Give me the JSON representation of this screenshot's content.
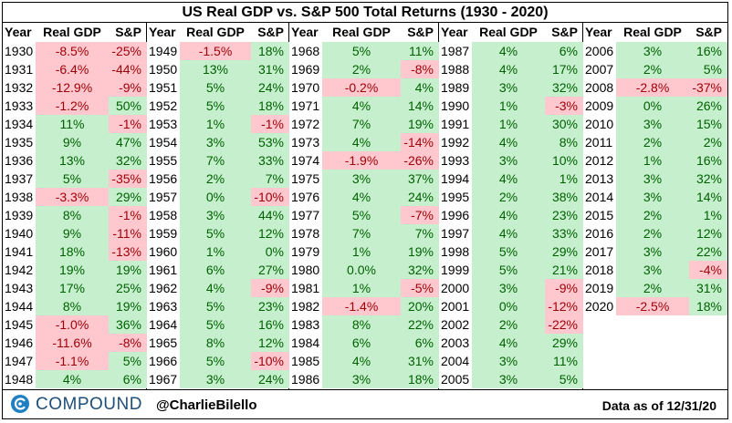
{
  "title": "US Real GDP vs. S&P 500 Total Returns (1930 - 2020)",
  "headers": {
    "year": "Year",
    "gdp": "Real GDP",
    "sp": "S&P"
  },
  "colors": {
    "positive_bg": "#c6efce",
    "positive_text": "#006100",
    "negative_bg": "#ffc7ce",
    "negative_text": "#9c0006"
  },
  "columns": [
    {
      "rows": [
        {
          "year": "1930",
          "gdp": "-8.5%",
          "sp": "-25%"
        },
        {
          "year": "1931",
          "gdp": "-6.4%",
          "sp": "-44%"
        },
        {
          "year": "1932",
          "gdp": "-12.9%",
          "sp": "-9%"
        },
        {
          "year": "1933",
          "gdp": "-1.2%",
          "sp": "50%"
        },
        {
          "year": "1934",
          "gdp": "11%",
          "sp": "-1%"
        },
        {
          "year": "1935",
          "gdp": "9%",
          "sp": "47%"
        },
        {
          "year": "1936",
          "gdp": "13%",
          "sp": "32%"
        },
        {
          "year": "1937",
          "gdp": "5%",
          "sp": "-35%"
        },
        {
          "year": "1938",
          "gdp": "-3.3%",
          "sp": "29%"
        },
        {
          "year": "1939",
          "gdp": "8%",
          "sp": "-1%"
        },
        {
          "year": "1940",
          "gdp": "9%",
          "sp": "-11%"
        },
        {
          "year": "1941",
          "gdp": "18%",
          "sp": "-13%"
        },
        {
          "year": "1942",
          "gdp": "19%",
          "sp": "19%"
        },
        {
          "year": "1943",
          "gdp": "17%",
          "sp": "25%"
        },
        {
          "year": "1944",
          "gdp": "8%",
          "sp": "19%"
        },
        {
          "year": "1945",
          "gdp": "-1.0%",
          "sp": "36%"
        },
        {
          "year": "1946",
          "gdp": "-11.6%",
          "sp": "-8%"
        },
        {
          "year": "1947",
          "gdp": "-1.1%",
          "sp": "5%"
        },
        {
          "year": "1948",
          "gdp": "4%",
          "sp": "6%"
        }
      ]
    },
    {
      "rows": [
        {
          "year": "1949",
          "gdp": "-1.5%",
          "sp": "18%"
        },
        {
          "year": "1950",
          "gdp": "13%",
          "sp": "31%"
        },
        {
          "year": "1951",
          "gdp": "5%",
          "sp": "24%"
        },
        {
          "year": "1952",
          "gdp": "5%",
          "sp": "18%"
        },
        {
          "year": "1953",
          "gdp": "1%",
          "sp": "-1%"
        },
        {
          "year": "1954",
          "gdp": "3%",
          "sp": "53%"
        },
        {
          "year": "1955",
          "gdp": "7%",
          "sp": "33%"
        },
        {
          "year": "1956",
          "gdp": "2%",
          "sp": "7%"
        },
        {
          "year": "1957",
          "gdp": "0%",
          "sp": "-10%"
        },
        {
          "year": "1958",
          "gdp": "3%",
          "sp": "44%"
        },
        {
          "year": "1959",
          "gdp": "5%",
          "sp": "12%"
        },
        {
          "year": "1960",
          "gdp": "1%",
          "sp": "0%"
        },
        {
          "year": "1961",
          "gdp": "6%",
          "sp": "27%"
        },
        {
          "year": "1962",
          "gdp": "4%",
          "sp": "-9%"
        },
        {
          "year": "1963",
          "gdp": "5%",
          "sp": "23%"
        },
        {
          "year": "1964",
          "gdp": "5%",
          "sp": "16%"
        },
        {
          "year": "1965",
          "gdp": "8%",
          "sp": "12%"
        },
        {
          "year": "1966",
          "gdp": "5%",
          "sp": "-10%"
        },
        {
          "year": "1967",
          "gdp": "3%",
          "sp": "24%"
        }
      ]
    },
    {
      "rows": [
        {
          "year": "1968",
          "gdp": "5%",
          "sp": "11%"
        },
        {
          "year": "1969",
          "gdp": "2%",
          "sp": "-8%"
        },
        {
          "year": "1970",
          "gdp": "-0.2%",
          "sp": "4%"
        },
        {
          "year": "1971",
          "gdp": "4%",
          "sp": "14%"
        },
        {
          "year": "1972",
          "gdp": "7%",
          "sp": "19%"
        },
        {
          "year": "1973",
          "gdp": "4%",
          "sp": "-14%"
        },
        {
          "year": "1974",
          "gdp": "-1.9%",
          "sp": "-26%"
        },
        {
          "year": "1975",
          "gdp": "3%",
          "sp": "37%"
        },
        {
          "year": "1976",
          "gdp": "4%",
          "sp": "24%"
        },
        {
          "year": "1977",
          "gdp": "5%",
          "sp": "-7%"
        },
        {
          "year": "1978",
          "gdp": "7%",
          "sp": "7%"
        },
        {
          "year": "1979",
          "gdp": "1%",
          "sp": "19%"
        },
        {
          "year": "1980",
          "gdp": "0.0%",
          "sp": "32%"
        },
        {
          "year": "1981",
          "gdp": "1%",
          "sp": "-5%"
        },
        {
          "year": "1982",
          "gdp": "-1.4%",
          "sp": "20%"
        },
        {
          "year": "1983",
          "gdp": "8%",
          "sp": "22%"
        },
        {
          "year": "1984",
          "gdp": "6%",
          "sp": "6%"
        },
        {
          "year": "1985",
          "gdp": "4%",
          "sp": "31%"
        },
        {
          "year": "1986",
          "gdp": "3%",
          "sp": "18%"
        }
      ]
    },
    {
      "rows": [
        {
          "year": "1987",
          "gdp": "4%",
          "sp": "6%"
        },
        {
          "year": "1988",
          "gdp": "4%",
          "sp": "17%"
        },
        {
          "year": "1989",
          "gdp": "3%",
          "sp": "32%"
        },
        {
          "year": "1990",
          "gdp": "1%",
          "sp": "-3%"
        },
        {
          "year": "1991",
          "gdp": "1%",
          "sp": "30%"
        },
        {
          "year": "1992",
          "gdp": "4%",
          "sp": "8%"
        },
        {
          "year": "1993",
          "gdp": "3%",
          "sp": "10%"
        },
        {
          "year": "1994",
          "gdp": "4%",
          "sp": "1%"
        },
        {
          "year": "1995",
          "gdp": "2%",
          "sp": "38%"
        },
        {
          "year": "1996",
          "gdp": "4%",
          "sp": "23%"
        },
        {
          "year": "1997",
          "gdp": "4%",
          "sp": "33%"
        },
        {
          "year": "1998",
          "gdp": "5%",
          "sp": "29%"
        },
        {
          "year": "1999",
          "gdp": "5%",
          "sp": "21%"
        },
        {
          "year": "2000",
          "gdp": "3%",
          "sp": "-9%"
        },
        {
          "year": "2001",
          "gdp": "0%",
          "sp": "-12%"
        },
        {
          "year": "2002",
          "gdp": "2%",
          "sp": "-22%"
        },
        {
          "year": "2003",
          "gdp": "4%",
          "sp": "29%"
        },
        {
          "year": "2004",
          "gdp": "3%",
          "sp": "11%"
        },
        {
          "year": "2005",
          "gdp": "3%",
          "sp": "5%"
        }
      ]
    },
    {
      "rows": [
        {
          "year": "2006",
          "gdp": "3%",
          "sp": "16%"
        },
        {
          "year": "2007",
          "gdp": "2%",
          "sp": "5%"
        },
        {
          "year": "2008",
          "gdp": "-2.8%",
          "sp": "-37%"
        },
        {
          "year": "2009",
          "gdp": "0%",
          "sp": "26%"
        },
        {
          "year": "2010",
          "gdp": "3%",
          "sp": "15%"
        },
        {
          "year": "2011",
          "gdp": "2%",
          "sp": "2%"
        },
        {
          "year": "2012",
          "gdp": "1%",
          "sp": "16%"
        },
        {
          "year": "2013",
          "gdp": "3%",
          "sp": "32%"
        },
        {
          "year": "2014",
          "gdp": "3%",
          "sp": "14%"
        },
        {
          "year": "2015",
          "gdp": "2%",
          "sp": "1%"
        },
        {
          "year": "2016",
          "gdp": "2%",
          "sp": "12%"
        },
        {
          "year": "2017",
          "gdp": "3%",
          "sp": "22%"
        },
        {
          "year": "2018",
          "gdp": "3%",
          "sp": "-4%"
        },
        {
          "year": "2019",
          "gdp": "2%",
          "sp": "31%"
        },
        {
          "year": "2020",
          "gdp": "-2.5%",
          "sp": "18%"
        }
      ]
    }
  ],
  "footer": {
    "brand": "COMPOUND",
    "logo_icon": "compound-logo-icon",
    "handle": "@CharlieBilello",
    "as_of": "Data as of 12/31/20"
  }
}
